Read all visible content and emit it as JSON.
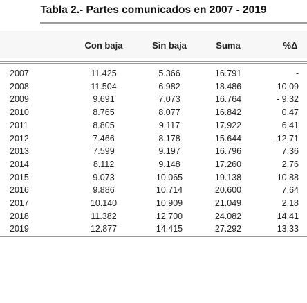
{
  "title": "Tabla 2.- Partes comunicados en 2007 - 2019",
  "table": {
    "headers": [
      "",
      "Con baja",
      "Sin baja",
      "Suma",
      "%Δ"
    ],
    "rows": [
      [
        "2007",
        "11.425",
        "5.366",
        "16.791",
        "-"
      ],
      [
        "2008",
        "11.504",
        "6.982",
        "18.486",
        "10,09"
      ],
      [
        "2009",
        "9.691",
        "7.073",
        "16.764",
        "- 9,32"
      ],
      [
        "2010",
        "8.765",
        "8.077",
        "16.842",
        "0,47"
      ],
      [
        "2011",
        "8.805",
        "9.117",
        "17.922",
        "6,41"
      ],
      [
        "2012",
        "7.466",
        "8.178",
        "15.644",
        "-12,71"
      ],
      [
        "2013",
        "7.599",
        "9.197",
        "16.796",
        "7,36"
      ],
      [
        "2014",
        "8.112",
        "9.148",
        "17.260",
        "2,76"
      ],
      [
        "2015",
        "9.073",
        "10.065",
        "19.138",
        "10,88"
      ],
      [
        "2016",
        "9.886",
        "10.714",
        "20.600",
        "7,64"
      ],
      [
        "2017",
        "10.140",
        "10.909",
        "21.049",
        "2,18"
      ],
      [
        "2018",
        "11.382",
        "12.700",
        "24.082",
        "14,41"
      ],
      [
        "2019",
        "12.877",
        "14.415",
        "27.292",
        "13,33"
      ]
    ]
  }
}
